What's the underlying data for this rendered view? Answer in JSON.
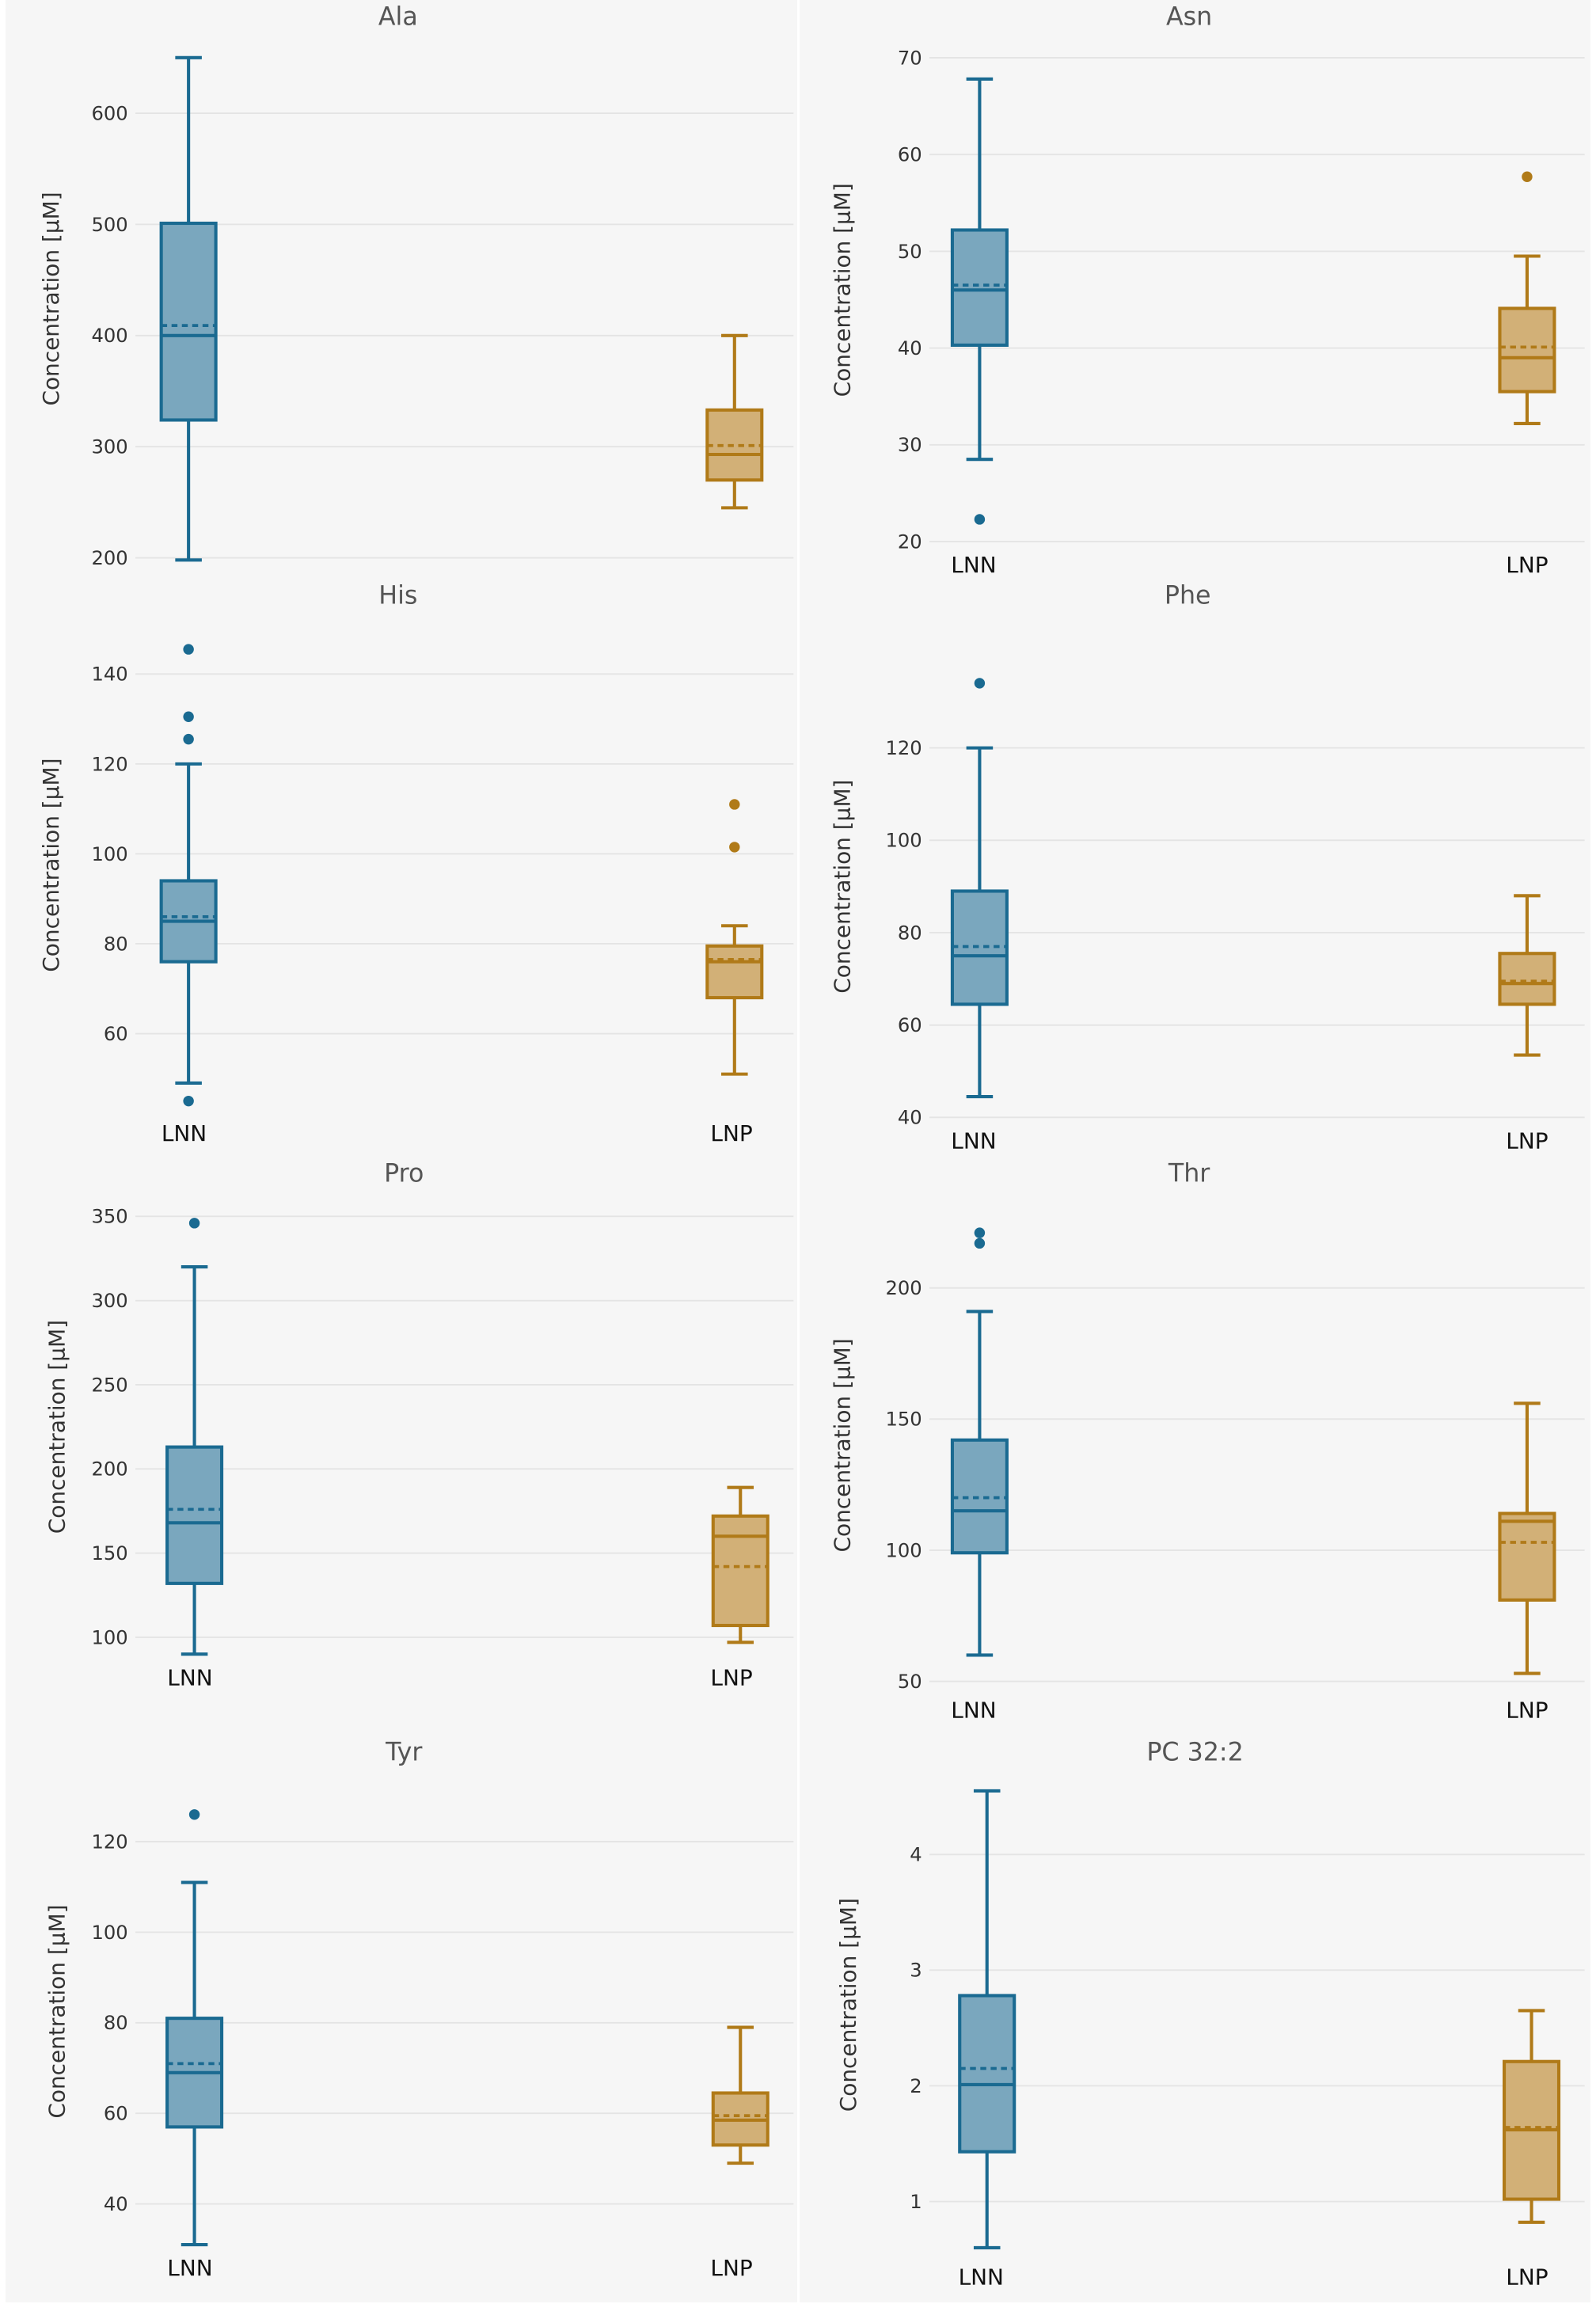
{
  "colors": {
    "LNN": "#1a6a91",
    "LNP": "#b07a18",
    "LNN_fill": "#7aa7be",
    "LNP_fill": "#d2b077",
    "grid": "#e4e4e4",
    "text": "#333333",
    "title": "#555555"
  },
  "chart_data": [
    {
      "type": "box",
      "title": "Ala",
      "ylabel": "Concentration [µM]",
      "yticks": [
        200,
        300,
        400,
        500,
        600
      ],
      "ylim": [
        194,
        672
      ],
      "categories": [
        "LNN",
        "LNP"
      ],
      "series": [
        {
          "name": "LNN",
          "min": 198,
          "q1": 324,
          "median": 400,
          "mean": 409,
          "q3": 501,
          "max": 650,
          "outliers": []
        },
        {
          "name": "LNP",
          "min": 245,
          "q1": 270,
          "median": 293,
          "mean": 301,
          "q3": 333,
          "max": 400,
          "outliers": []
        }
      ]
    },
    {
      "type": "box",
      "title": "Asn",
      "ylabel": "Concentration [µM]",
      "yticks": [
        20,
        30,
        40,
        50,
        60,
        70
      ],
      "ylim": [
        20,
        72
      ],
      "categories": [
        "LNN",
        "LNP"
      ],
      "series": [
        {
          "name": "LNN",
          "min": 28.5,
          "q1": 40.3,
          "median": 46,
          "mean": 46.5,
          "q3": 52.2,
          "max": 67.8,
          "outliers": [
            22.3
          ]
        },
        {
          "name": "LNP",
          "min": 32.2,
          "q1": 35.5,
          "median": 39,
          "mean": 40.1,
          "q3": 44.1,
          "max": 49.5,
          "outliers": [
            57.7
          ]
        }
      ]
    },
    {
      "type": "box",
      "title": "His",
      "ylabel": "Concentration [µM]",
      "yticks": [
        60,
        80,
        100,
        120,
        140
      ],
      "ylim": [
        43,
        152
      ],
      "categories": [
        "LNN",
        "LNP"
      ],
      "series": [
        {
          "name": "LNN",
          "min": 49,
          "q1": 76,
          "median": 85,
          "mean": 86,
          "q3": 94,
          "max": 120,
          "outliers": [
            45,
            125.5,
            130.5,
            145.5
          ]
        },
        {
          "name": "LNP",
          "min": 51,
          "q1": 68,
          "median": 76,
          "mean": 76.5,
          "q3": 79.5,
          "max": 84,
          "outliers": [
            101.5,
            111
          ]
        }
      ]
    },
    {
      "type": "box",
      "title": "Phe",
      "ylabel": "Concentration [µM]",
      "yticks": [
        40,
        60,
        80,
        100,
        120
      ],
      "ylim": [
        40,
        140
      ],
      "categories": [
        "LNN",
        "LNP"
      ],
      "series": [
        {
          "name": "LNN",
          "min": 44.5,
          "q1": 64.5,
          "median": 75,
          "mean": 77,
          "q3": 89,
          "max": 120,
          "outliers": [
            134
          ]
        },
        {
          "name": "LNP",
          "min": 53.5,
          "q1": 64.5,
          "median": 69,
          "mean": 69.5,
          "q3": 75.5,
          "max": 88,
          "outliers": []
        }
      ]
    },
    {
      "type": "box",
      "title": "Pro",
      "ylabel": "Concentration [µM]",
      "yticks": [
        100,
        150,
        200,
        250,
        300,
        350
      ],
      "ylim": [
        90,
        360
      ],
      "categories": [
        "LNN",
        "LNP"
      ],
      "series": [
        {
          "name": "LNN",
          "min": 90,
          "q1": 132,
          "median": 168,
          "mean": 176,
          "q3": 213,
          "max": 320,
          "outliers": [
            346
          ]
        },
        {
          "name": "LNP",
          "min": 97,
          "q1": 107,
          "median": 160,
          "mean": 142,
          "q3": 172,
          "max": 189,
          "outliers": []
        }
      ]
    },
    {
      "type": "box",
      "title": "Thr",
      "ylabel": "Concentration [µM]",
      "yticks": [
        50,
        100,
        150,
        200
      ],
      "ylim": [
        48,
        232
      ],
      "categories": [
        "LNN",
        "LNP"
      ],
      "series": [
        {
          "name": "LNN",
          "min": 60,
          "q1": 99,
          "median": 115,
          "mean": 120,
          "q3": 142,
          "max": 191,
          "outliers": [
            217,
            221
          ]
        },
        {
          "name": "LNP",
          "min": 53,
          "q1": 81,
          "median": 111,
          "mean": 103,
          "q3": 114,
          "max": 156,
          "outliers": []
        }
      ]
    },
    {
      "type": "box",
      "title": "Tyr",
      "ylabel": "Concentration [µM]",
      "yticks": [
        40,
        60,
        80,
        100,
        120
      ],
      "ylim": [
        31,
        134
      ],
      "categories": [
        "LNN",
        "LNP"
      ],
      "series": [
        {
          "name": "LNN",
          "min": 31,
          "q1": 57,
          "median": 69,
          "mean": 71,
          "q3": 81,
          "max": 111,
          "outliers": [
            126
          ]
        },
        {
          "name": "LNP",
          "min": 49,
          "q1": 53,
          "median": 58.5,
          "mean": 59.5,
          "q3": 64.5,
          "max": 79,
          "outliers": []
        }
      ]
    },
    {
      "type": "box",
      "title": "PC 32:2",
      "ylabel": "Concentration [µM]",
      "yticks": [
        1,
        2,
        3,
        4
      ],
      "ylim": [
        0.55,
        4.85
      ],
      "categories": [
        "LNN",
        "LNP"
      ],
      "series": [
        {
          "name": "LNN",
          "min": 0.6,
          "q1": 1.43,
          "median": 2.01,
          "mean": 2.15,
          "q3": 2.78,
          "max": 4.55,
          "outliers": []
        },
        {
          "name": "LNP",
          "min": 0.82,
          "q1": 1.02,
          "median": 1.62,
          "mean": 1.64,
          "q3": 2.21,
          "max": 2.65,
          "outliers": []
        }
      ]
    }
  ]
}
